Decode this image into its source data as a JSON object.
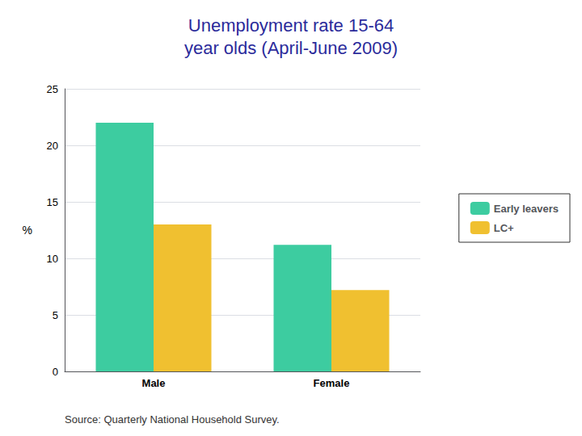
{
  "chart_data": {
    "type": "bar",
    "title": "Unemployment rate 15-64\nyear olds (April-June 2009)",
    "categories": [
      "Male",
      "Female"
    ],
    "series": [
      {
        "name": "Early leavers",
        "color": "#3DCCA0",
        "values": [
          22,
          11.2
        ]
      },
      {
        "name": "LC+",
        "color": "#F0C030",
        "values": [
          13,
          7.2
        ]
      }
    ],
    "ylabel": "%",
    "ylim": [
      0,
      25
    ],
    "yticks": [
      0,
      5,
      10,
      15,
      20,
      25
    ],
    "grid": true,
    "legend": "right",
    "annotations": [
      "Source: Quarterly National Household Survey."
    ]
  }
}
